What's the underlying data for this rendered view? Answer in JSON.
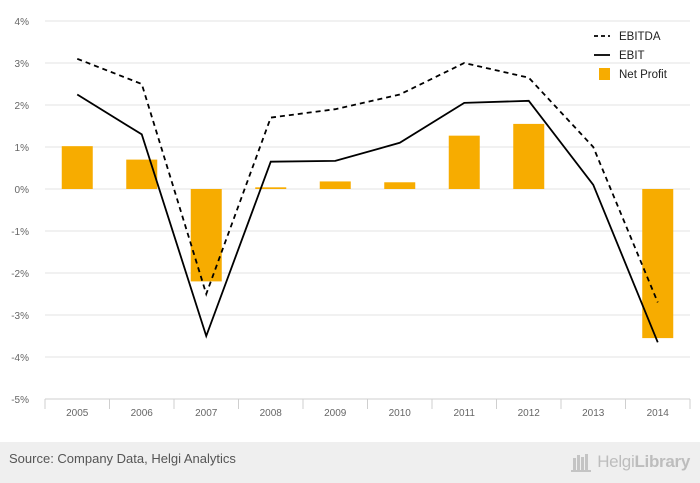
{
  "chart_data": {
    "type": "bar",
    "categories": [
      "2005",
      "2006",
      "2007",
      "2008",
      "2009",
      "2010",
      "2011",
      "2012",
      "2013",
      "2014"
    ],
    "series": [
      {
        "name": "EBITDA",
        "kind": "line",
        "dashed": true,
        "color": "#000000",
        "values": [
          3.1,
          2.5,
          -2.5,
          1.7,
          1.9,
          2.25,
          3.0,
          2.65,
          1.0,
          -2.7
        ]
      },
      {
        "name": "EBIT",
        "kind": "line",
        "dashed": false,
        "color": "#000000",
        "values": [
          2.25,
          1.3,
          -3.5,
          0.65,
          0.67,
          1.1,
          2.05,
          2.1,
          0.1,
          -3.65
        ]
      },
      {
        "name": "Net Profit",
        "kind": "bar",
        "color": "#f7ac00",
        "values": [
          1.02,
          0.7,
          -2.2,
          0.04,
          0.18,
          0.16,
          1.27,
          1.55,
          0.0,
          -3.55
        ]
      }
    ],
    "ylim": [
      -5,
      4
    ],
    "yticks": [
      4,
      3,
      2,
      1,
      0,
      -1,
      -2,
      -3,
      -4,
      -5
    ],
    "ytick_labels": [
      "4%",
      "3%",
      "2%",
      "1%",
      "0%",
      "-1%",
      "-2%",
      "-3%",
      "-4%",
      "-5%"
    ],
    "title": "",
    "xlabel": "",
    "ylabel": "",
    "grid": true,
    "legend_position": "top-right"
  },
  "legend": {
    "items": [
      {
        "label": "EBITDA",
        "style": "dashed"
      },
      {
        "label": "EBIT",
        "style": "solid"
      },
      {
        "label": "Net Profit",
        "style": "bar"
      }
    ]
  },
  "footer": {
    "source": "Source: Company Data, Helgi Analytics",
    "logo_word_light": "Helgi",
    "logo_word_bold": "Library",
    "logo_icon": "library-logo-icon"
  },
  "colors": {
    "bar": "#f7ac00",
    "grid": "#e3e3e3",
    "axis_text": "#666666",
    "footer_bg": "#efefef"
  }
}
